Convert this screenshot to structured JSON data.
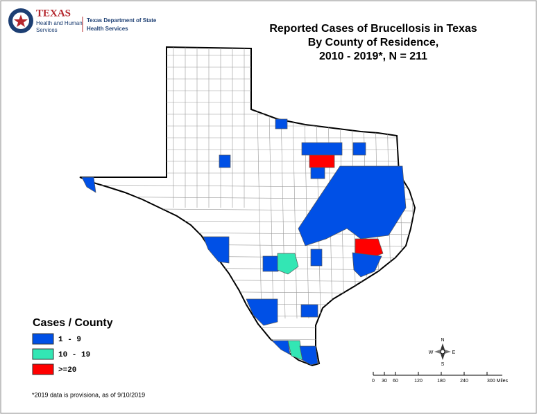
{
  "logo": {
    "brand": "TEXAS",
    "line1": "Health and Human",
    "line2": "Services",
    "dept1": "Texas Department of State",
    "dept2": "Health Services"
  },
  "title": {
    "line1": "Reported Cases of Brucellosis in Texas",
    "line2": "By County of Residence,",
    "line3": "2010 - 2019*, N = 211"
  },
  "legend": {
    "title": "Cases / County",
    "items": [
      {
        "label": "1 - 9",
        "color": "#0050e6"
      },
      {
        "label": "10 - 19",
        "color": "#33e6b4"
      },
      {
        "label": ">=20",
        "color": "#ff0000"
      }
    ]
  },
  "compass": {
    "n": "N",
    "s": "S",
    "e": "E",
    "w": "W"
  },
  "scale_bar": {
    "labels": [
      "0",
      "30",
      "60",
      "120",
      "180",
      "240",
      "300 Miles"
    ]
  },
  "footnote": "*2019 data is provisiona, as of 9/10/2019"
}
